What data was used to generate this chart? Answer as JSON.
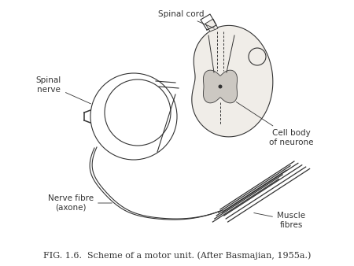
{
  "bg_color": "#ffffff",
  "line_color": "#333333",
  "gray_fill": "#c8c4be",
  "light_fill": "#f0ede8",
  "caption": "FIG. 1.6.  Scheme of a motor unit. (After Basmajian, 1955a.)",
  "labels": {
    "spinal_cord": "Spinal cord",
    "spinal_nerve": "Spinal\nnerve",
    "cell_body": "Cell body\nof neurone",
    "nerve_fibre": "Nerve fibre\n(axone)",
    "muscle_fibres": "Muscle\nfibres"
  },
  "caption_fontsize": 8.0,
  "label_fontsize": 7.5
}
